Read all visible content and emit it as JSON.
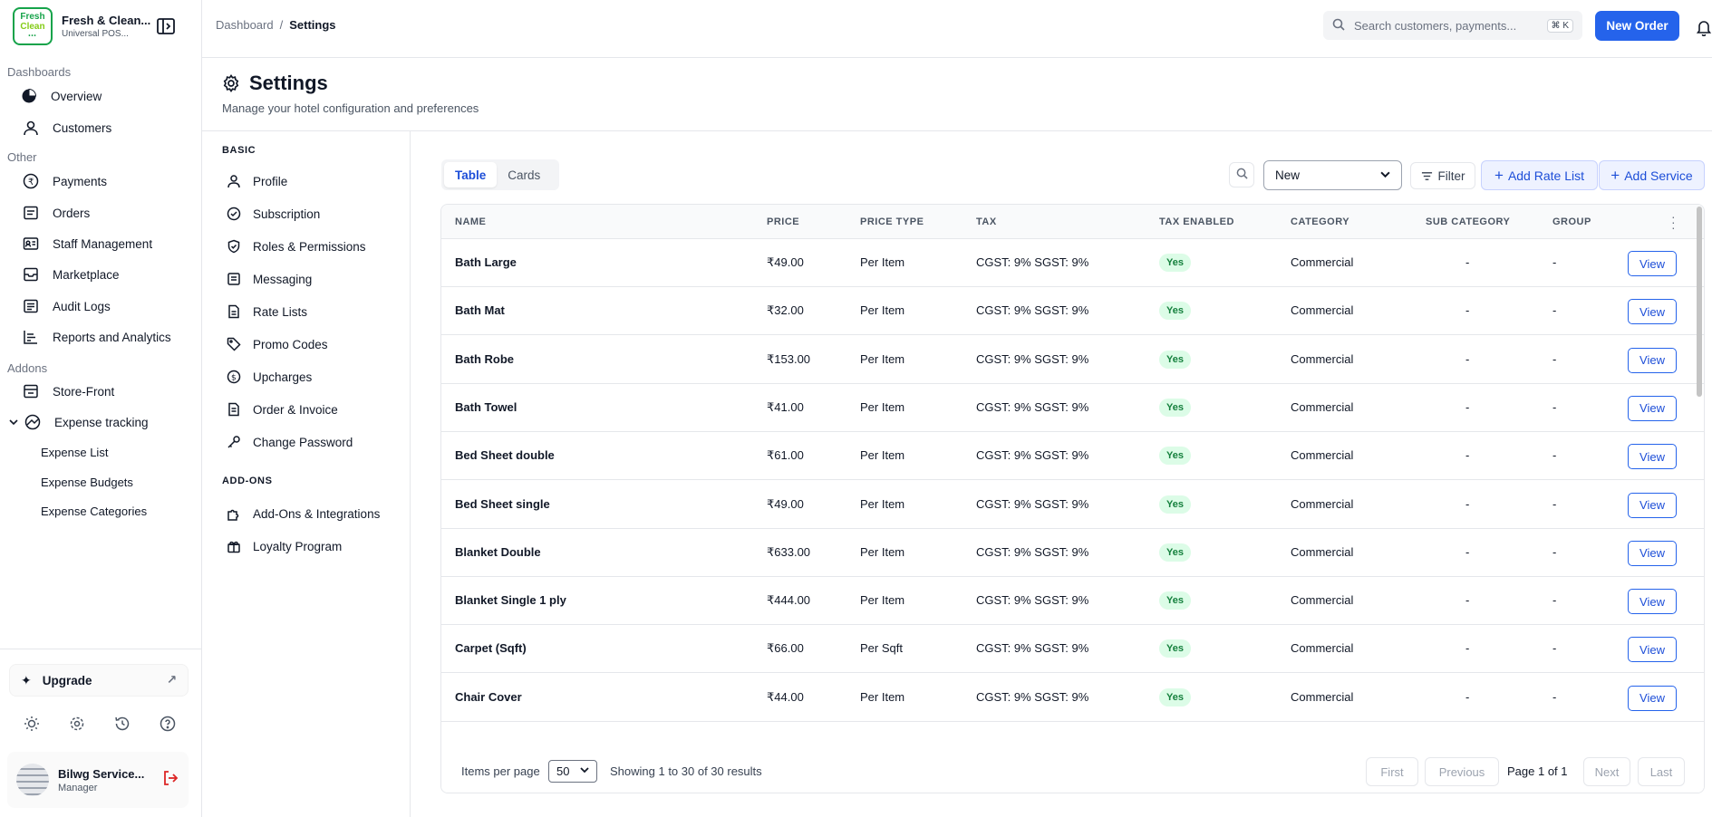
{
  "brand": {
    "name": "Fresh & Clean...",
    "subtitle": "Universal POS...",
    "logo_line1": "Fresh",
    "logo_line2": "Clean"
  },
  "sidebar": {
    "sections": {
      "dashboards": "Dashboards",
      "other": "Other",
      "addons": "Addons"
    },
    "items": {
      "overview": "Overview",
      "customers": "Customers",
      "payments": "Payments",
      "orders": "Orders",
      "staff": "Staff Management",
      "marketplace": "Marketplace",
      "audit": "Audit Logs",
      "reports": "Reports and Analytics",
      "storefront": "Store-Front",
      "expense": "Expense tracking"
    },
    "expense_sub": [
      "Expense List",
      "Expense Budgets",
      "Expense Categories"
    ],
    "upgrade": "Upgrade",
    "user": {
      "name": "Bilwg Service...",
      "role": "Manager"
    }
  },
  "topbar": {
    "breadcrumb": [
      "Dashboard",
      "Settings"
    ],
    "search_placeholder": "Search customers, payments...",
    "search_shortcut": "⌘ K",
    "new_order": "New Order"
  },
  "page": {
    "title": "Settings",
    "subtitle": "Manage your hotel configuration and preferences"
  },
  "settings_nav": {
    "basic_label": "BASIC",
    "basic": [
      "Profile",
      "Subscription",
      "Roles & Permissions",
      "Messaging",
      "Rate Lists",
      "Promo Codes",
      "Upcharges",
      "Order & Invoice",
      "Change Password"
    ],
    "addons_label": "ADD-ONS",
    "addons": [
      "Add-Ons & Integrations",
      "Loyalty Program"
    ]
  },
  "toolbar": {
    "tabs": [
      "Table",
      "Cards"
    ],
    "active_tab": "Table",
    "select_value": "New",
    "filter": "Filter",
    "add_rate_list": "Add Rate List",
    "add_service": "Add Service"
  },
  "table": {
    "columns": [
      "NAME",
      "PRICE",
      "PRICE TYPE",
      "TAX",
      "TAX ENABLED",
      "CATEGORY",
      "SUB CATEGORY",
      "GROUP"
    ],
    "view_label": "View",
    "rows": [
      {
        "name": "Bath Large",
        "price": "₹49.00",
        "price_type": "Per Item",
        "tax": "CGST: 9% SGST: 9%",
        "tax_enabled": "Yes",
        "category": "Commercial",
        "sub_category": "-",
        "group": "-"
      },
      {
        "name": "Bath Mat",
        "price": "₹32.00",
        "price_type": "Per Item",
        "tax": "CGST: 9% SGST: 9%",
        "tax_enabled": "Yes",
        "category": "Commercial",
        "sub_category": "-",
        "group": "-"
      },
      {
        "name": "Bath Robe",
        "price": "₹153.00",
        "price_type": "Per Item",
        "tax": "CGST: 9% SGST: 9%",
        "tax_enabled": "Yes",
        "category": "Commercial",
        "sub_category": "-",
        "group": "-"
      },
      {
        "name": "Bath Towel",
        "price": "₹41.00",
        "price_type": "Per Item",
        "tax": "CGST: 9% SGST: 9%",
        "tax_enabled": "Yes",
        "category": "Commercial",
        "sub_category": "-",
        "group": "-"
      },
      {
        "name": "Bed Sheet double",
        "price": "₹61.00",
        "price_type": "Per Item",
        "tax": "CGST: 9% SGST: 9%",
        "tax_enabled": "Yes",
        "category": "Commercial",
        "sub_category": "-",
        "group": "-"
      },
      {
        "name": "Bed Sheet single",
        "price": "₹49.00",
        "price_type": "Per Item",
        "tax": "CGST: 9% SGST: 9%",
        "tax_enabled": "Yes",
        "category": "Commercial",
        "sub_category": "-",
        "group": "-"
      },
      {
        "name": "Blanket Double",
        "price": "₹633.00",
        "price_type": "Per Item",
        "tax": "CGST: 9% SGST: 9%",
        "tax_enabled": "Yes",
        "category": "Commercial",
        "sub_category": "-",
        "group": "-"
      },
      {
        "name": "Blanket Single 1 ply",
        "price": "₹444.00",
        "price_type": "Per Item",
        "tax": "CGST: 9% SGST: 9%",
        "tax_enabled": "Yes",
        "category": "Commercial",
        "sub_category": "-",
        "group": "-"
      },
      {
        "name": "Carpet (Sqft)",
        "price": "₹66.00",
        "price_type": "Per Sqft",
        "tax": "CGST: 9% SGST: 9%",
        "tax_enabled": "Yes",
        "category": "Commercial",
        "sub_category": "-",
        "group": "-"
      },
      {
        "name": "Chair Cover",
        "price": "₹44.00",
        "price_type": "Per Item",
        "tax": "CGST: 9% SGST: 9%",
        "tax_enabled": "Yes",
        "category": "Commercial",
        "sub_category": "-",
        "group": "-"
      }
    ]
  },
  "pagination": {
    "items_per_page_label": "Items per page",
    "items_per_page": "50",
    "showing": "Showing 1 to 30 of 30 results",
    "first": "First",
    "previous": "Previous",
    "page_info": "Page 1 of 1",
    "next": "Next",
    "last": "Last"
  },
  "colors": {
    "accent": "#2563eb",
    "badge_bg": "#dcfce7",
    "badge_text": "#15803d",
    "logout": "#dc2626"
  }
}
